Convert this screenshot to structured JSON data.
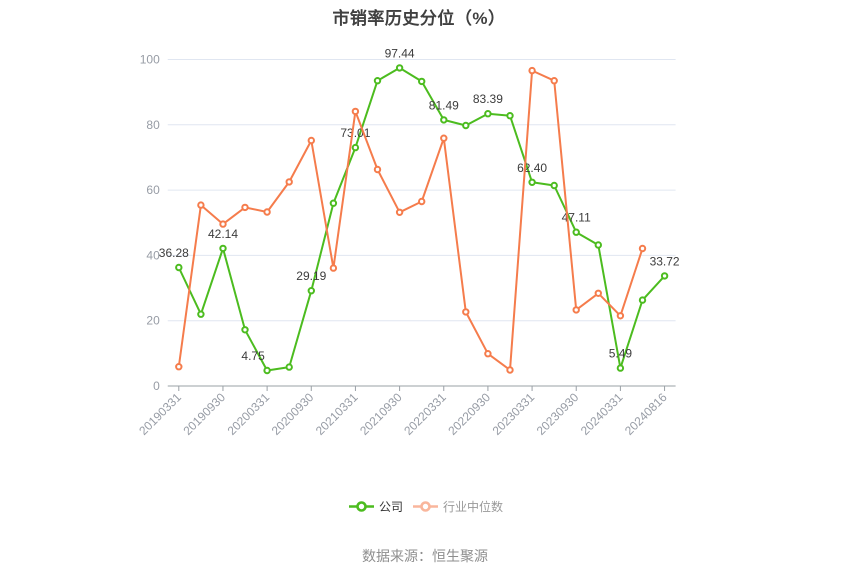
{
  "chart_data": {
    "type": "line",
    "title": "市销率历史分位（%）",
    "source_note": "数据来源：恒生聚源",
    "x_tick_labels": [
      "20190331",
      "20190930",
      "20200331",
      "20200930",
      "20210331",
      "20210930",
      "20220331",
      "20220930",
      "20230331",
      "20230930",
      "20240331",
      "20240816"
    ],
    "points_per_tick": 2,
    "ylim": [
      0,
      100
    ],
    "yticks": [
      0,
      20,
      40,
      60,
      80,
      100
    ],
    "grid": true,
    "legend_position": "bottom",
    "series": [
      {
        "name": "公司",
        "color": "#4cbc1f",
        "legend_text_color": "#333333",
        "legend_marker_opacity": 1,
        "values": [
          36.28,
          22.0,
          42.14,
          17.2,
          4.75,
          5.8,
          29.19,
          56.0,
          73.01,
          93.5,
          97.44,
          93.3,
          81.49,
          79.8,
          83.39,
          82.8,
          62.4,
          61.4,
          47.11,
          43.2,
          5.49,
          26.3,
          33.72
        ],
        "point_labels": [
          "36.28",
          "",
          "42.14",
          "",
          "4.75",
          "",
          "29.19",
          "",
          "73.01",
          "",
          "97.44",
          "",
          "81.49",
          "",
          "83.39",
          "",
          "62.40",
          "",
          "47.11",
          "",
          "5.49",
          "",
          "33.72"
        ],
        "label_dx": [
          -5,
          0,
          0,
          0,
          -14,
          0,
          0,
          0,
          0,
          0,
          0,
          0,
          0,
          0,
          0,
          0,
          0,
          0,
          0,
          0,
          0,
          0,
          0
        ]
      },
      {
        "name": "行业中位数",
        "color": "#f57c4c",
        "legend_text_color": "#999999",
        "legend_marker_opacity": 0.55,
        "values": [
          5.9,
          55.4,
          49.6,
          54.7,
          53.3,
          62.5,
          75.2,
          36.1,
          84.1,
          66.3,
          53.2,
          56.5,
          75.9,
          22.7,
          9.9,
          4.9,
          96.6,
          93.5,
          23.3,
          28.4,
          21.5,
          42.1,
          null
        ],
        "point_labels": [
          "",
          "",
          "",
          "",
          "",
          "",
          "",
          "",
          "",
          "",
          "",
          "",
          "",
          "",
          "",
          "",
          "",
          "",
          "",
          "",
          "",
          "",
          ""
        ],
        "label_dx": [
          0,
          0,
          0,
          0,
          0,
          0,
          0,
          0,
          0,
          0,
          0,
          0,
          0,
          0,
          0,
          0,
          0,
          0,
          0,
          0,
          0,
          0,
          0
        ]
      }
    ],
    "colors": {
      "grid_line": "#e0e6f1",
      "axis_line": "#9aa0a6",
      "axis_label": "#979ca5",
      "point_label": "#3c3c3c",
      "title": "#404040",
      "footer": "#8e8e8e"
    }
  }
}
